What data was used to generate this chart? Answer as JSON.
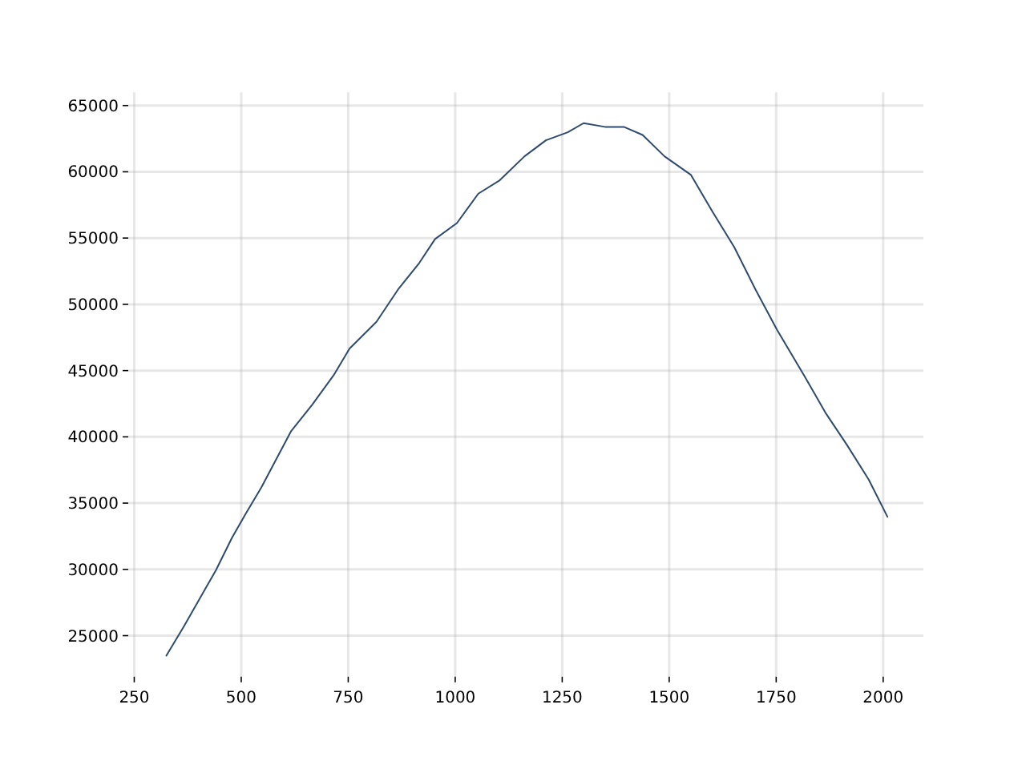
{
  "chart_data": {
    "type": "line",
    "xlim": [
      236,
      2094
    ],
    "ylim": [
      21900,
      66000
    ],
    "xticks": [
      250,
      500,
      750,
      1000,
      1250,
      1500,
      1750,
      2000
    ],
    "yticks": [
      25000,
      30000,
      35000,
      40000,
      45000,
      50000,
      55000,
      60000,
      65000
    ],
    "grid": true,
    "series": [
      {
        "color": "#2e4a6e",
        "x": [
          325,
          366,
          441,
          478,
          510,
          547,
          616,
          666,
          716,
          753,
          816,
          866,
          916,
          953,
          1004,
          1054,
          1104,
          1162,
          1212,
          1263,
          1300,
          1350,
          1394,
          1438,
          1489,
          1551,
          1602,
          1652,
          1702,
          1752,
          1815,
          1865,
          1915,
          1966,
          2010
        ],
        "values": [
          23490,
          25700,
          29940,
          32360,
          34170,
          36180,
          40400,
          42430,
          44650,
          46660,
          48680,
          51100,
          53120,
          54930,
          56130,
          58350,
          59360,
          61170,
          62380,
          62980,
          63670,
          63390,
          63390,
          62780,
          61170,
          59760,
          56940,
          54320,
          51100,
          48070,
          44650,
          41830,
          39410,
          36790,
          33970
        ]
      }
    ]
  }
}
